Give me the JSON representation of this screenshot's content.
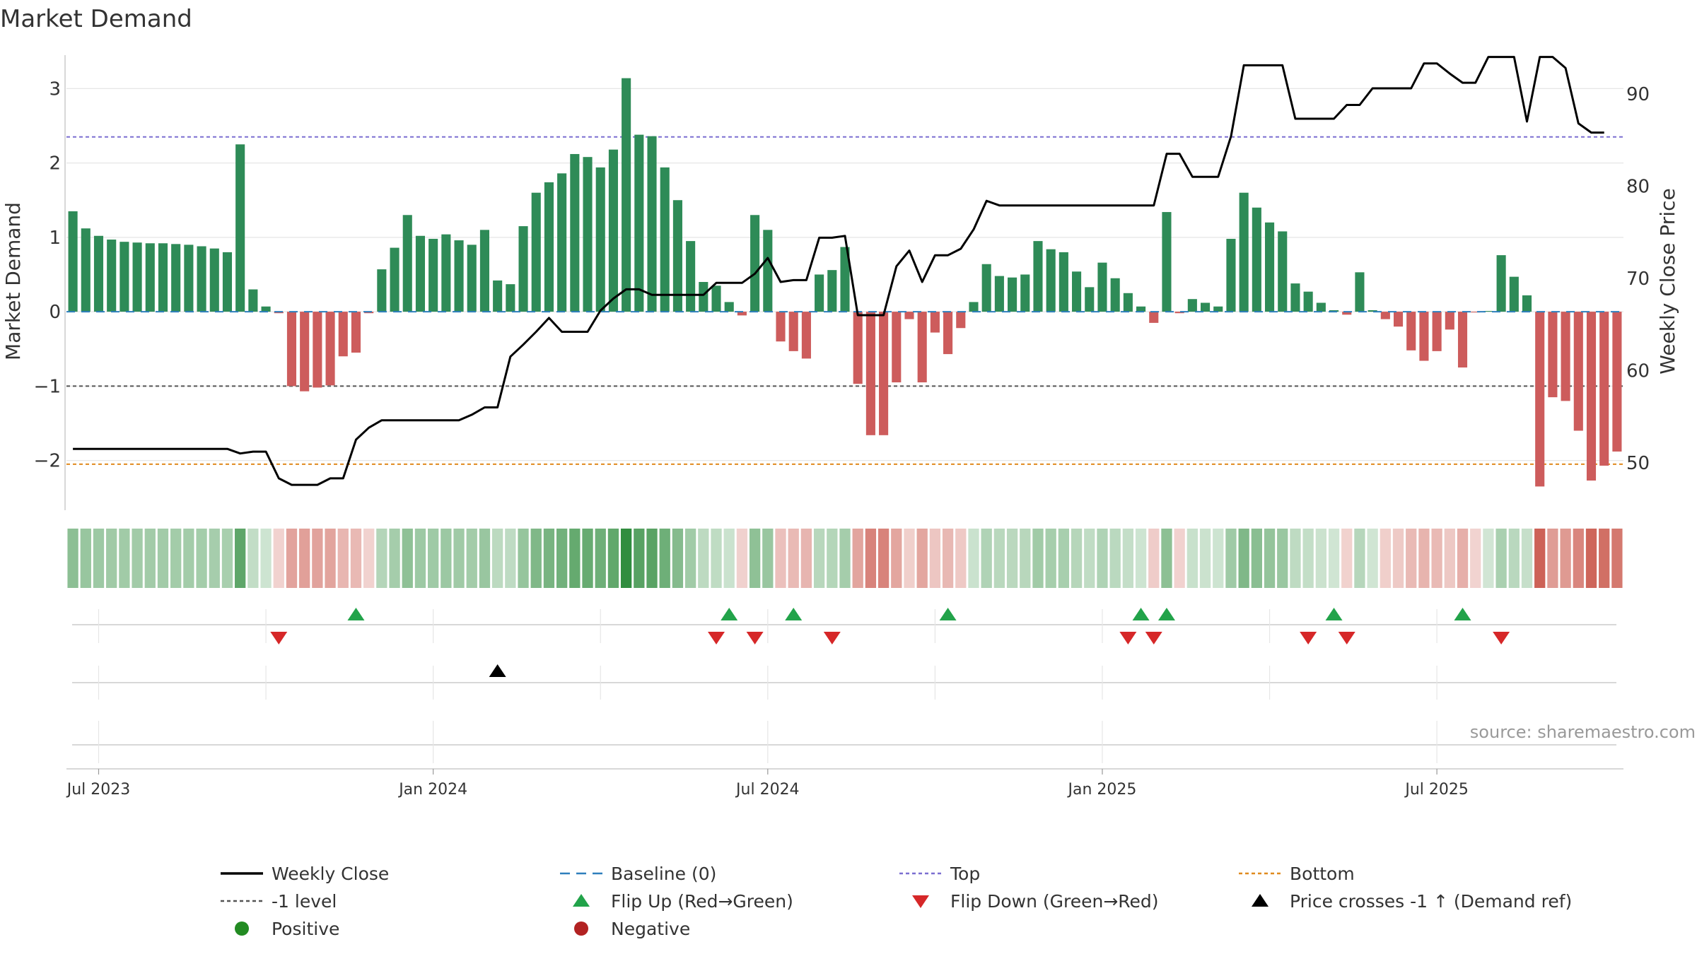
{
  "chart_data": {
    "type": "bar",
    "title": "Market Demand",
    "ylabel": "Market Demand",
    "y2label": "Weekly Close Price",
    "ylim": [
      -2.65,
      3.45
    ],
    "y2lim": [
      45,
      94.2
    ],
    "yticks": [
      {
        "v": 3,
        "label": "3"
      },
      {
        "v": 2,
        "label": "2"
      },
      {
        "v": 1,
        "label": "1"
      },
      {
        "v": 0,
        "label": "0"
      },
      {
        "v": -1,
        "label": "−1"
      },
      {
        "v": -2,
        "label": "−2"
      }
    ],
    "y2ticks": [
      {
        "v": 90,
        "label": "90"
      },
      {
        "v": 80,
        "label": "80"
      },
      {
        "v": 70,
        "label": "70"
      },
      {
        "v": 60,
        "label": "60"
      },
      {
        "v": 50,
        "label": "50"
      }
    ],
    "xticks": [
      {
        "week": 2,
        "label": "Jul 2023"
      },
      {
        "week": 28,
        "label": "Jan 2024"
      },
      {
        "week": 54,
        "label": "Jul 2024"
      },
      {
        "week": 80,
        "label": "Jan 2025"
      },
      {
        "week": 106,
        "label": "Jul 2025"
      }
    ],
    "reference_lines": {
      "top": 2.35,
      "minus_one": -1,
      "bottom": -2.05,
      "baseline": 0
    },
    "demand": [
      1.35,
      1.12,
      1.02,
      0.97,
      0.94,
      0.93,
      0.92,
      0.92,
      0.91,
      0.9,
      0.88,
      0.85,
      0.8,
      2.25,
      0.3,
      0.07,
      -0.02,
      -1.0,
      -1.07,
      -1.02,
      -0.99,
      -0.6,
      -0.55,
      -0.02,
      0.57,
      0.86,
      1.3,
      1.02,
      0.98,
      1.04,
      0.96,
      0.9,
      1.1,
      0.42,
      0.37,
      1.15,
      1.6,
      1.74,
      1.86,
      2.12,
      2.08,
      1.94,
      2.18,
      3.14,
      2.38,
      2.36,
      1.94,
      1.5,
      0.95,
      0.4,
      0.35,
      0.13,
      -0.05,
      1.3,
      1.1,
      -0.4,
      -0.53,
      -0.63,
      0.5,
      0.56,
      0.87,
      -0.97,
      -1.66,
      -1.66,
      -0.95,
      -0.1,
      -0.95,
      -0.28,
      -0.57,
      -0.22,
      0.13,
      0.64,
      0.48,
      0.46,
      0.5,
      0.95,
      0.84,
      0.8,
      0.54,
      0.33,
      0.66,
      0.45,
      0.25,
      0.07,
      -0.15,
      1.34,
      -0.02,
      0.17,
      0.12,
      0.07,
      0.98,
      1.6,
      1.4,
      1.2,
      1.08,
      0.38,
      0.27,
      0.12,
      0.02,
      -0.04,
      0.53,
      0.02,
      -0.1,
      -0.2,
      -0.52,
      -0.66,
      -0.53,
      -0.24,
      -0.75,
      -0.01,
      0.01,
      0.76,
      0.47,
      0.22,
      -2.35,
      -1.15,
      -1.2,
      -1.6,
      -2.27,
      -2.07,
      -1.88
    ],
    "weekly_close": [
      51.5,
      51.5,
      51.5,
      51.5,
      51.5,
      51.5,
      51.5,
      51.5,
      51.5,
      51.5,
      51.5,
      51.5,
      51.5,
      51,
      51.2,
      51.2,
      48.3,
      47.6,
      47.6,
      47.6,
      48.3,
      48.3,
      52.5,
      53.8,
      54.6,
      54.6,
      54.6,
      54.6,
      54.6,
      54.6,
      54.6,
      55.2,
      56,
      56,
      61.5,
      62.8,
      64.2,
      65.7,
      64.2,
      64.2,
      64.2,
      66.5,
      67.8,
      68.8,
      68.8,
      68.2,
      68.2,
      68.2,
      68.2,
      68.2,
      69.5,
      69.5,
      69.5,
      70.5,
      72.2,
      69.6,
      69.8,
      69.8,
      74.4,
      74.4,
      74.6,
      66,
      66,
      66,
      71.3,
      73,
      69.6,
      72.5,
      72.5,
      73.2,
      75.3,
      78.4,
      77.9,
      77.9,
      77.9,
      77.9,
      77.9,
      77.9,
      77.9,
      77.9,
      77.9,
      77.9,
      77.9,
      77.9,
      77.9,
      83.5,
      83.5,
      81,
      81,
      81,
      85.4,
      93.1,
      93.1,
      93.1,
      93.1,
      87.3,
      87.3,
      87.3,
      87.3,
      88.8,
      88.8,
      90.6,
      90.6,
      90.6,
      90.6,
      93.3,
      93.3,
      92.2,
      91.2,
      91.2,
      94,
      94,
      94,
      87,
      94,
      94,
      92.8,
      86.8,
      85.8,
      85.8
    ],
    "flip_up_weeks": [
      22,
      51,
      56,
      68,
      83,
      85,
      98,
      108
    ],
    "flip_down_weeks": [
      16,
      50,
      53,
      59,
      82,
      84,
      96,
      99,
      111
    ],
    "price_cross_weeks": [
      33
    ],
    "source": "source: sharemaestro.com",
    "legend": [
      {
        "label": "Weekly Close",
        "symbol": "line-solid",
        "color": "#000000"
      },
      {
        "label": "Baseline (0)",
        "symbol": "line-dash",
        "color": "#2e7fbd"
      },
      {
        "label": "Top",
        "symbol": "line-dot",
        "color": "#7b6fd1"
      },
      {
        "label": "Bottom",
        "symbol": "line-dot",
        "color": "#e08a1e"
      },
      {
        "label": "-1 level",
        "symbol": "line-dot",
        "color": "#555555"
      },
      {
        "label": "Flip Up (Red→Green)",
        "symbol": "triangle-up",
        "color": "#22a34a"
      },
      {
        "label": "Flip Down (Green→Red)",
        "symbol": "triangle-down",
        "color": "#d62728"
      },
      {
        "label": "Price crosses -1 ↑ (Demand ref)",
        "symbol": "triangle-up",
        "color": "#000000"
      },
      {
        "label": "Positive",
        "symbol": "circle",
        "color": "#228b22"
      },
      {
        "label": "Negative",
        "symbol": "circle",
        "color": "#b22222"
      }
    ],
    "colors": {
      "positive_bar": "#2e8b57",
      "negative_bar": "#cd5c5c",
      "heat_positive": "#2e8b3c",
      "heat_negative": "#c0392b",
      "grid": "#e6e6e6",
      "axis": "#cccccc"
    }
  }
}
